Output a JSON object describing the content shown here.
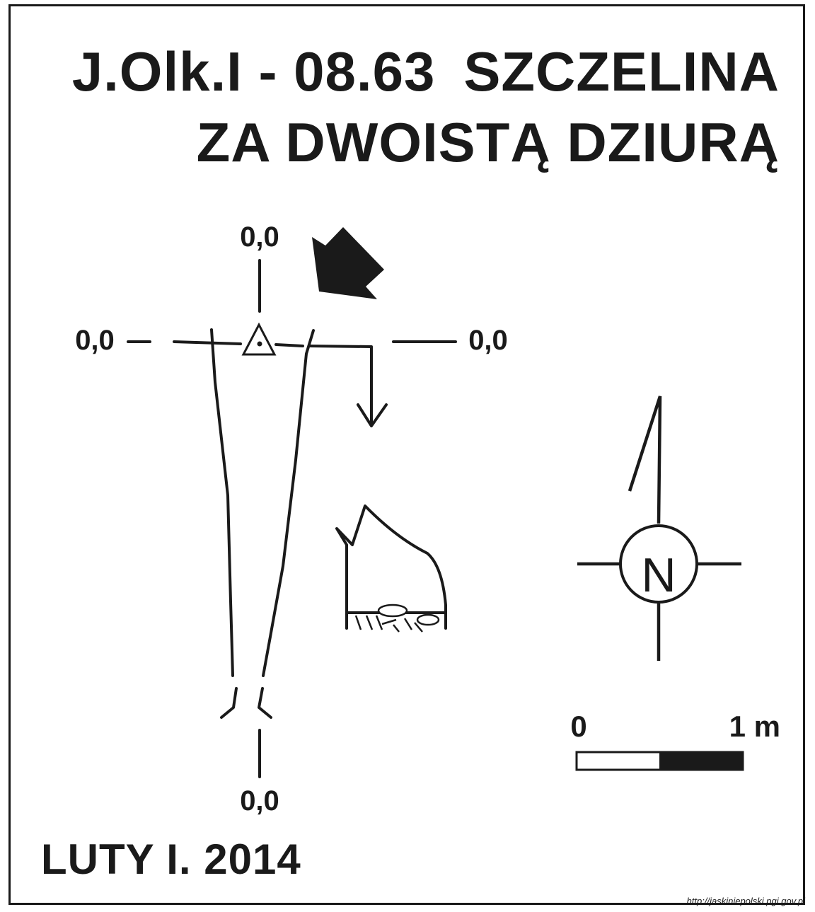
{
  "title": {
    "code": "J.Olk.I - 08.63",
    "line1_name": "SZCZELINA",
    "line2": "ZA DWOISTĄ DZIURĄ"
  },
  "date": "LUTY I. 2014",
  "source_url": "http://jaskiniepolski.pgi.gov.pl",
  "datum_labels": {
    "top": "0,0",
    "left": "0,0",
    "right": "0,0",
    "bottom": "0,0"
  },
  "north_symbol": "N",
  "scale_bar": {
    "start_label": "0",
    "end_label": "1 m"
  },
  "icons": [
    "entrance-triangle-icon",
    "north-arrow-icon",
    "direction-arrow-icon",
    "scale-bar-icon"
  ],
  "colors": {
    "ink": "#1a1a1a",
    "paper": "#ffffff"
  }
}
